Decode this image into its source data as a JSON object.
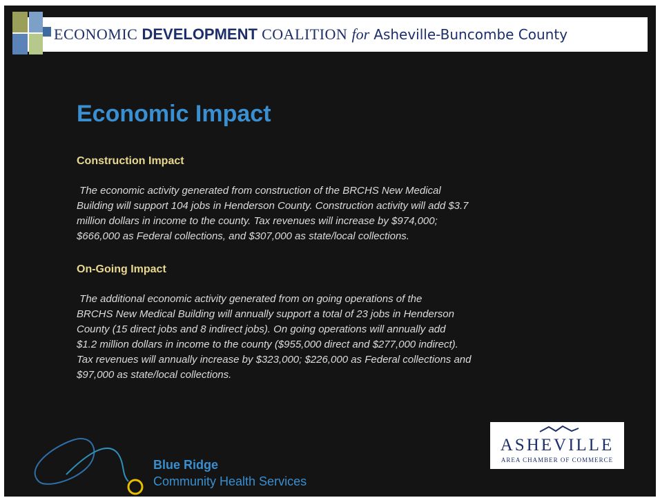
{
  "header": {
    "part1": "ECONOMIC",
    "part2": "DEVELOPMENT",
    "part3": "COALITION",
    "part4": "for",
    "part5": "Asheville-Buncombe County"
  },
  "title": "Economic Impact",
  "sections": [
    {
      "heading": "Construction Impact",
      "lines": [
        " The economic activity generated from construction of the BRCHS New Medical",
        "Building will support 104 jobs in Henderson County. Construction activity will add $3.7",
        "million dollars in income to the county. Tax revenues will increase by $974,000;",
        "$666,000 as Federal collections, and $307,000 as state/local collections."
      ]
    },
    {
      "heading": "On-Going Impact",
      "lines": [
        " The additional economic activity generated from on going operations of the",
        "BRCHS New Medical Building will annually support a total of 23 jobs in Henderson",
        "County (15 direct jobs and 8 indirect jobs). On going operations will annually add",
        "$1.2 million dollars in income to the county ($955,000 direct and $277,000 indirect).",
        "Tax revenues will annually increase by $323,000; $226,000 as Federal collections and",
        "$97,000 as state/local collections."
      ]
    }
  ],
  "footer": {
    "brchs_line1": "Blue Ridge",
    "brchs_line2": "Community Health Services",
    "chamber_name": "ASHEVILLE",
    "chamber_sub": "AREA CHAMBER OF COMMERCE"
  }
}
